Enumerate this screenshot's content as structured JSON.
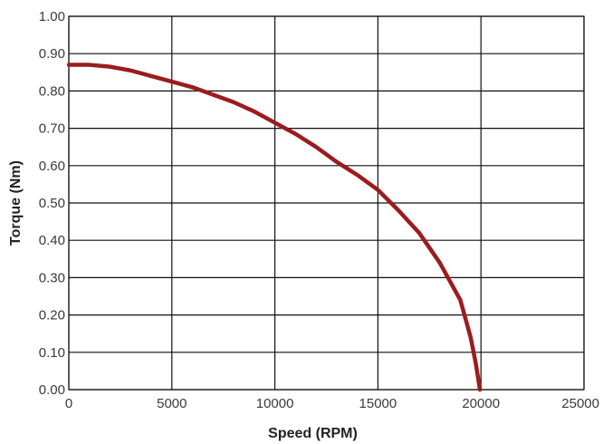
{
  "chart_data": {
    "type": "line",
    "xlabel": "Speed (RPM)",
    "ylabel": "Torque (Nm)",
    "xlim": [
      0,
      25000
    ],
    "ylim": [
      0,
      1.0
    ],
    "x_ticks": [
      "0",
      "5000",
      "10000",
      "15000",
      "20000",
      "25000"
    ],
    "y_ticks": [
      "0.00",
      "0.10",
      "0.20",
      "0.30",
      "0.40",
      "0.50",
      "0.60",
      "0.70",
      "0.80",
      "0.90",
      "1.00"
    ],
    "grid": true,
    "series": [
      {
        "color": "#9b1c1f",
        "points": [
          [
            0,
            0.87
          ],
          [
            1000,
            0.87
          ],
          [
            2000,
            0.865
          ],
          [
            3000,
            0.855
          ],
          [
            4000,
            0.84
          ],
          [
            5000,
            0.825
          ],
          [
            6000,
            0.81
          ],
          [
            7000,
            0.79
          ],
          [
            8000,
            0.77
          ],
          [
            9000,
            0.745
          ],
          [
            10000,
            0.715
          ],
          [
            11000,
            0.685
          ],
          [
            12000,
            0.65
          ],
          [
            13000,
            0.61
          ],
          [
            14000,
            0.575
          ],
          [
            15000,
            0.535
          ],
          [
            16000,
            0.48
          ],
          [
            17000,
            0.42
          ],
          [
            18000,
            0.34
          ],
          [
            19000,
            0.24
          ],
          [
            19500,
            0.14
          ],
          [
            19750,
            0.07
          ],
          [
            19950,
            0.0
          ]
        ]
      }
    ]
  }
}
